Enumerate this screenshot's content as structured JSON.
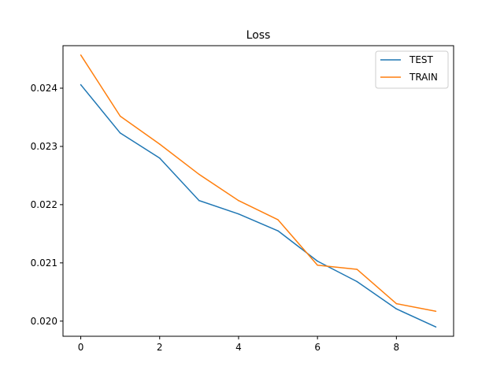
{
  "chart_data": {
    "type": "line",
    "title": "Loss",
    "xlabel": "",
    "ylabel": "",
    "x": [
      0,
      1,
      2,
      3,
      4,
      5,
      6,
      7,
      8,
      9
    ],
    "xlim": [
      -0.45,
      9.45
    ],
    "ylim": [
      0.01974,
      0.02473
    ],
    "xticks": [
      0,
      2,
      4,
      6,
      8
    ],
    "xtick_labels": [
      "0",
      "2",
      "4",
      "6",
      "8"
    ],
    "yticks": [
      0.02,
      0.021,
      0.022,
      0.023,
      0.024
    ],
    "ytick_labels": [
      "0.020",
      "0.021",
      "0.022",
      "0.023",
      "0.024"
    ],
    "grid": false,
    "legend_position": "top-right",
    "series": [
      {
        "name": "TEST",
        "color": "#1f77b4",
        "values": [
          0.02406,
          0.02323,
          0.0228,
          0.02207,
          0.02184,
          0.02155,
          0.02103,
          0.02068,
          0.02021,
          0.0199
        ]
      },
      {
        "name": "TRAIN",
        "color": "#ff7f0e",
        "values": [
          0.02457,
          0.02352,
          0.02304,
          0.02252,
          0.02207,
          0.02174,
          0.02096,
          0.02089,
          0.0203,
          0.02017
        ]
      }
    ]
  }
}
